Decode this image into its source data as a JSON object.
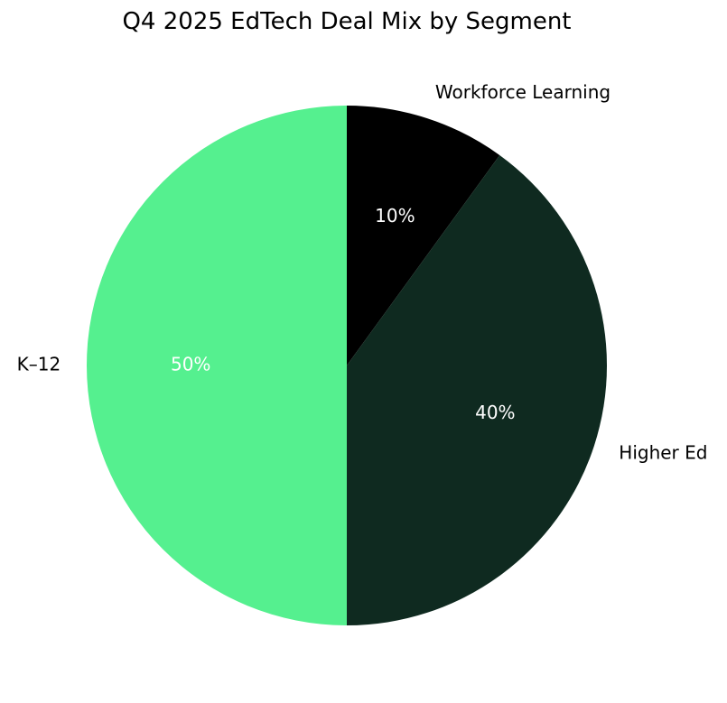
{
  "chart_data": {
    "type": "pie",
    "title": "Q4 2025 EdTech Deal Mix by Segment",
    "start_angle_deg": 90,
    "direction": "clockwise",
    "slices": [
      {
        "label": "Workforce Learning",
        "value": 10,
        "pct_label": "10%",
        "color": "#000000",
        "pct_color": "#ffffff"
      },
      {
        "label": "Higher Ed",
        "value": 40,
        "pct_label": "40%",
        "color": "#0f2a20",
        "pct_color": "#ffffff"
      },
      {
        "label": "K–12",
        "value": 50,
        "pct_label": "50%",
        "color": "#55f08f",
        "pct_color": "#ffffff"
      }
    ]
  }
}
